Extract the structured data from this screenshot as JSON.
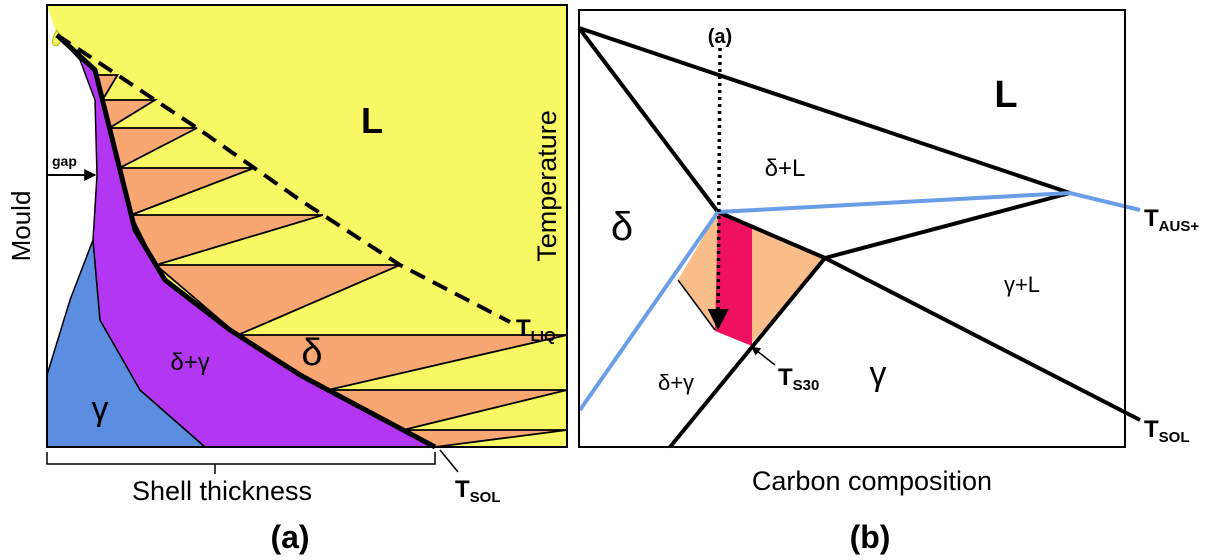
{
  "panel_a": {
    "mould_label": "Mould",
    "gap_label": "gap",
    "regions": {
      "liquid": "L",
      "delta_gamma": "δ+γ",
      "gamma": "γ",
      "delta": "δ"
    },
    "t_liq": {
      "symbol": "T",
      "subscript": "LIQ"
    },
    "t_sol": {
      "symbol": "T",
      "subscript": "SOL"
    },
    "x_axis_label": "Shell thickness",
    "caption": "(a)"
  },
  "panel_b": {
    "path_label": "(a)",
    "y_axis_label": "Temperature",
    "x_axis_label": "Carbon composition",
    "regions": {
      "liquid": "L",
      "delta_liquid": "δ+L",
      "delta": "δ",
      "gamma_liquid": "γ+L",
      "delta_gamma": "δ+γ",
      "gamma": "γ"
    },
    "t_aus": {
      "symbol": "T",
      "subscript": "AUS+"
    },
    "t_s30": {
      "symbol": "T",
      "subscript": "S30"
    },
    "t_sol": {
      "symbol": "T",
      "subscript": "SOL"
    },
    "caption": "(b)"
  }
}
